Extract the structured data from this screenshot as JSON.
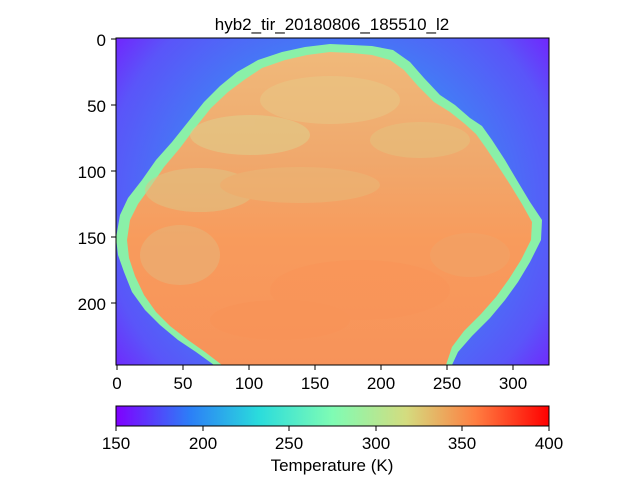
{
  "figure": {
    "title": "hyb2_tir_20180806_185510_l2"
  },
  "image_axes": {
    "x_ticks": [
      "0",
      "50",
      "100",
      "150",
      "200",
      "250",
      "300"
    ],
    "y_ticks": [
      "0",
      "50",
      "100",
      "150",
      "200"
    ]
  },
  "colorbar": {
    "label": "Temperature (K)",
    "ticks": [
      "150",
      "200",
      "250",
      "300",
      "350",
      "400"
    ],
    "min": 150,
    "max": 400,
    "colormap": "rainbow",
    "colors": [
      "#8000ff",
      "#2c7ef7",
      "#2adcdc",
      "#7ffcb4",
      "#d4dc7f",
      "#ff7e41",
      "#ff0000"
    ]
  },
  "thermal_image": {
    "background_temperature_range_K": [
      155,
      235
    ],
    "surface_temperature_range_K": [
      300,
      355
    ]
  }
}
